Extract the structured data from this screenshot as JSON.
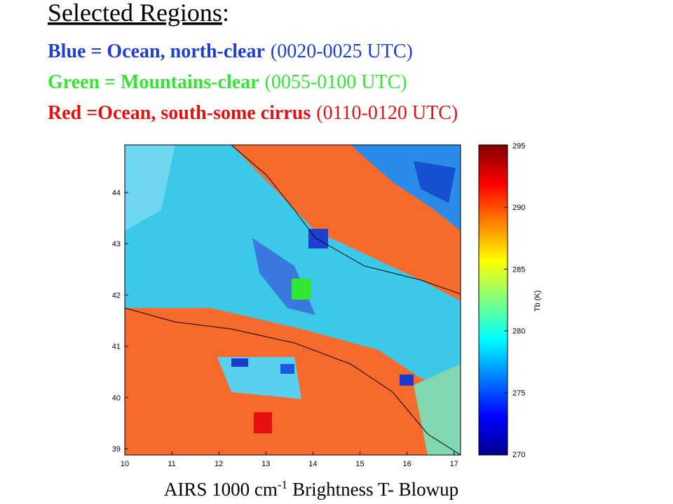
{
  "title": {
    "text": "Selected Regions",
    "suffix": ":"
  },
  "legend": [
    {
      "label": "Blue = Ocean, north-clear",
      "time": "(0020-0025 UTC)",
      "color": "#1f3fd0"
    },
    {
      "label": "Green = Mountains-clear",
      "time": "(0055-0100 UTC)",
      "color": "#33e633"
    },
    {
      "label": "Red =Ocean, south-some cirrus",
      "time": "(0110-0120 UTC)",
      "color": "#e61010"
    }
  ],
  "map": {
    "x_ticks": [
      10,
      11,
      12,
      13,
      14,
      15,
      16,
      17
    ],
    "y_ticks": [
      44,
      43,
      42,
      41,
      40,
      39
    ]
  },
  "colorbar": {
    "ticks": [
      295,
      290,
      285,
      280,
      275,
      270
    ],
    "label": "Tb (K)"
  },
  "caption": {
    "text": "AIRS 1000 cm",
    "sup": "-1",
    "rest": "Brightness T- Blowup"
  }
}
